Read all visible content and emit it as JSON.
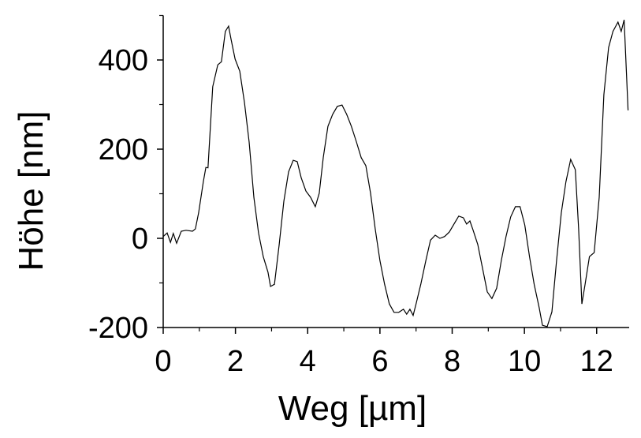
{
  "chart_data": {
    "type": "line",
    "x_label": "Weg [µm]",
    "y_label": "Höhe [nm]",
    "xlim": [
      0,
      12.9
    ],
    "ylim": [
      -200,
      500
    ],
    "xticks": [
      0,
      2,
      4,
      6,
      8,
      10,
      12
    ],
    "xminorticks": [
      1,
      3,
      5,
      7,
      9,
      11
    ],
    "yticks": [
      -200,
      0,
      200,
      400
    ],
    "yminorticks": [
      -100,
      100,
      300,
      500
    ],
    "series": [
      {
        "color": "#000000",
        "x": [
          0,
          0.11,
          0.2,
          0.28,
          0.37,
          0.5,
          0.63,
          0.81,
          0.89,
          0.98,
          1.11,
          1.18,
          1.24,
          1.37,
          1.51,
          1.61,
          1.72,
          1.81,
          1.88,
          1.99,
          2.12,
          2.25,
          2.38,
          2.51,
          2.64,
          2.77,
          2.9,
          2.97,
          3.08,
          3.21,
          3.34,
          3.47,
          3.6,
          3.71,
          3.82,
          3.95,
          4.08,
          4.21,
          4.32,
          4.43,
          4.56,
          4.69,
          4.82,
          4.95,
          5.08,
          5.21,
          5.35,
          5.48,
          5.61,
          5.74,
          5.87,
          6.0,
          6.13,
          6.26,
          6.39,
          6.52,
          6.65,
          6.74,
          6.83,
          6.92,
          7.0,
          7.13,
          7.27,
          7.4,
          7.53,
          7.66,
          7.79,
          7.92,
          8.05,
          8.18,
          8.31,
          8.4,
          8.49,
          8.58,
          8.71,
          8.84,
          8.97,
          9.1,
          9.23,
          9.36,
          9.49,
          9.62,
          9.75,
          9.88,
          10.01,
          10.14,
          10.27,
          10.41,
          10.5,
          10.63,
          10.76,
          10.89,
          11.02,
          11.15,
          11.28,
          11.41,
          11.5,
          11.59,
          11.68,
          11.8,
          11.93,
          12.07,
          12.2,
          12.33,
          12.45,
          12.59,
          12.68,
          12.76,
          12.87
        ],
        "values": [
          4,
          12,
          -9,
          11,
          -11,
          16,
          18,
          16,
          21,
          57,
          127,
          159,
          158,
          340,
          389,
          396,
          464,
          476,
          446,
          402,
          375,
          304,
          216,
          92,
          12,
          -41,
          -76,
          -108,
          -103,
          -14,
          83,
          149,
          175,
          172,
          136,
          106,
          92,
          71,
          101,
          181,
          251,
          278,
          296,
          299,
          278,
          251,
          216,
          181,
          163,
          101,
          21,
          -50,
          -103,
          -147,
          -166,
          -166,
          -159,
          -170,
          -159,
          -173,
          -147,
          -103,
          -50,
          -4,
          7,
          0,
          4,
          14,
          32,
          50,
          46,
          32,
          39,
          18,
          -14,
          -67,
          -120,
          -135,
          -112,
          -50,
          4,
          48,
          71,
          71,
          30,
          -41,
          -103,
          -156,
          -195,
          -198,
          -165,
          -50,
          57,
          127,
          177,
          154,
          21,
          -147,
          -103,
          -41,
          -32,
          92,
          322,
          428,
          464,
          485,
          464,
          490,
          287
        ]
      }
    ]
  }
}
